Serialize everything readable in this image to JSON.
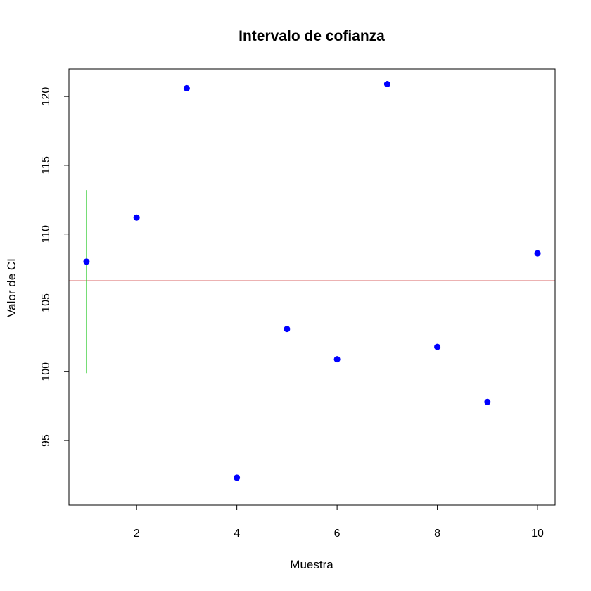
{
  "chart_data": {
    "type": "scatter",
    "title": "Intervalo de cofianza",
    "xlabel": "Muestra",
    "ylabel": "Valor de CI",
    "xlim": [
      0.65,
      10.35
    ],
    "ylim": [
      90.3,
      122.0
    ],
    "x_ticks": [
      2,
      4,
      6,
      8,
      10
    ],
    "y_ticks": [
      95,
      100,
      105,
      110,
      115,
      120
    ],
    "points": {
      "x": [
        1,
        2,
        3,
        4,
        5,
        6,
        7,
        8,
        9,
        10
      ],
      "y": [
        108.0,
        111.2,
        120.6,
        92.3,
        103.1,
        100.9,
        120.9,
        101.8,
        97.8,
        108.6
      ],
      "color": "#0000ff"
    },
    "reference_line": {
      "y": 106.6,
      "color": "#cc3333"
    },
    "interval": {
      "x": 1,
      "y_low": 99.9,
      "y_high": 113.2,
      "color": "#33cc33"
    },
    "grid": false,
    "legend": "none"
  }
}
